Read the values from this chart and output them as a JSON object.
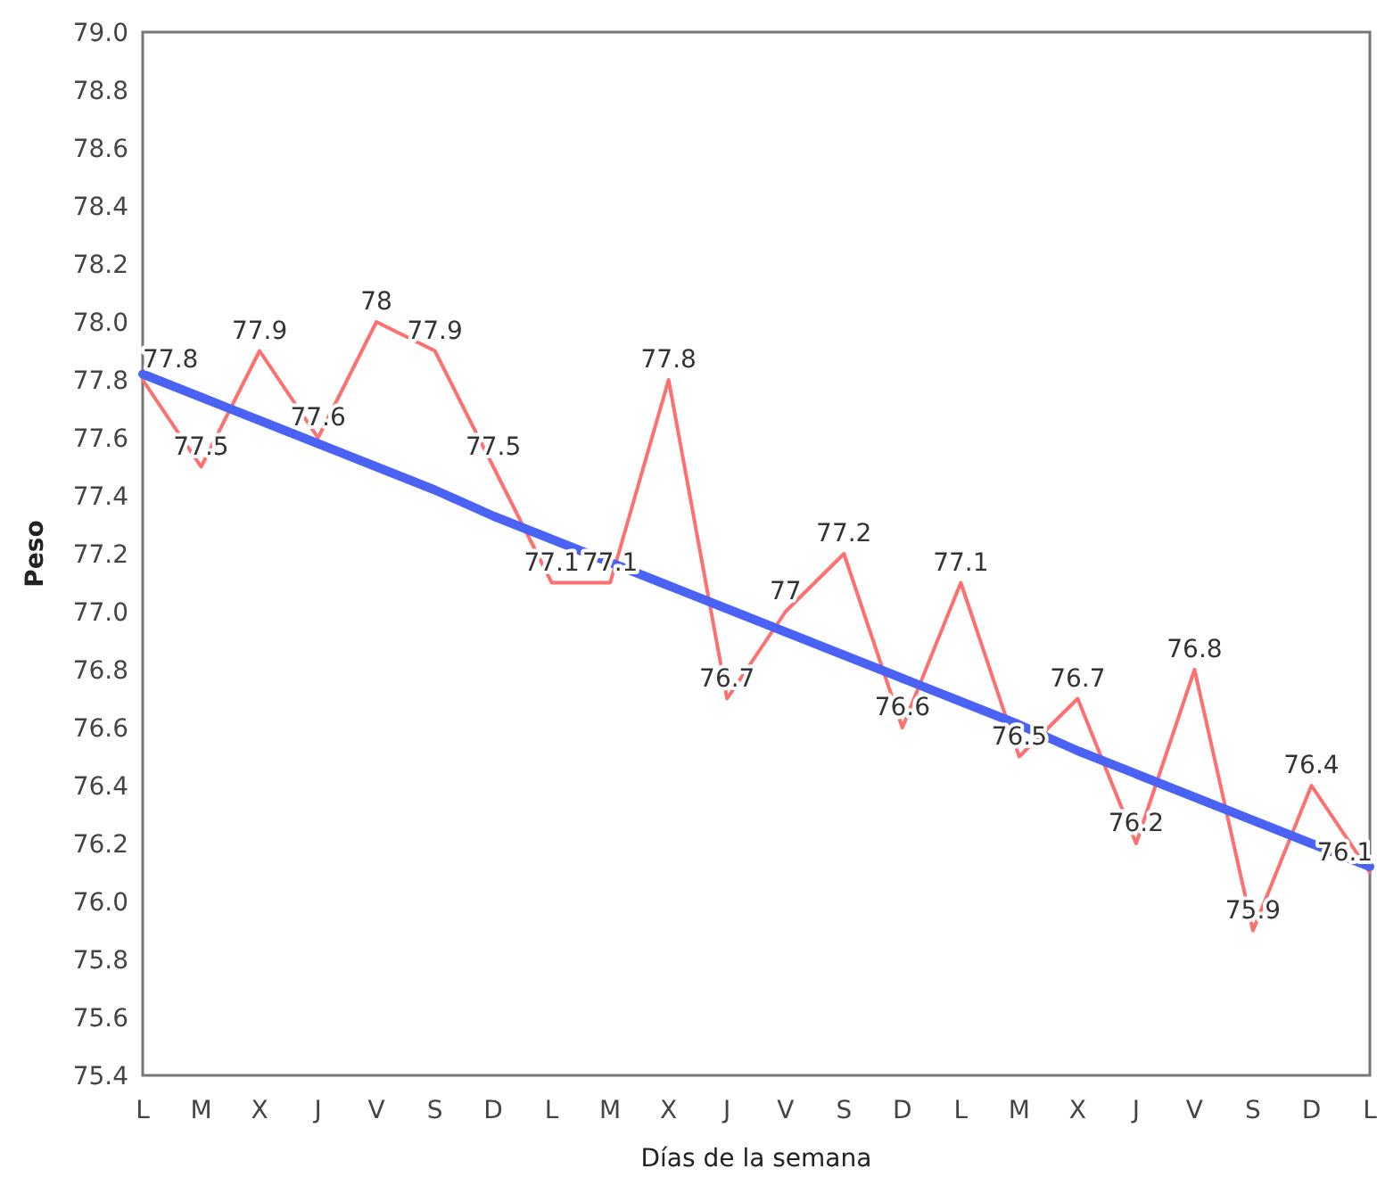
{
  "chart_data": {
    "type": "line",
    "xlabel": "Días de la semana",
    "ylabel": "Peso",
    "categories": [
      "L",
      "M",
      "X",
      "J",
      "V",
      "S",
      "D",
      "L",
      "M",
      "X",
      "J",
      "V",
      "S",
      "D",
      "L",
      "M",
      "X",
      "J",
      "V",
      "S",
      "D",
      "L"
    ],
    "series": [
      {
        "color": "#ff6f6f",
        "values": [
          77.8,
          77.5,
          77.9,
          77.6,
          78,
          77.9,
          77.5,
          77.1,
          77.1,
          77.8,
          76.7,
          77,
          77.2,
          76.6,
          77.1,
          76.5,
          76.7,
          76.2,
          76.8,
          75.9,
          76.4,
          76.1
        ],
        "value_labels": [
          "77.8",
          "77.5",
          "77.9",
          "77.6",
          "78",
          "77.9",
          "77.5",
          "77.1",
          "77.1",
          "77.8",
          "76.7",
          "77",
          "77.2",
          "76.6",
          "77.1",
          "76.5",
          "76.7",
          "76.2",
          "76.8",
          "75.9",
          "76.4",
          "76.1"
        ]
      },
      {
        "type": "line",
        "color": "#4a63f5",
        "values": [
          77.82,
          77.74,
          77.66,
          77.58,
          77.5,
          77.42,
          77.33,
          77.25,
          77.17,
          77.09,
          77.01,
          76.93,
          76.85,
          76.77,
          76.69,
          76.61,
          76.52,
          76.44,
          76.36,
          76.28,
          76.2,
          76.12
        ]
      }
    ],
    "ylim": [
      75.4,
      79
    ],
    "yticks": [
      75.4,
      75.6,
      75.8,
      {
        "value": 76,
        "label": "76.0"
      },
      76.2,
      76.4,
      76.6,
      76.8,
      {
        "value": 77,
        "label": "77.0"
      },
      77.2,
      77.4,
      77.6,
      77.8,
      {
        "value": 78,
        "label": "78.0"
      },
      78.2,
      78.4,
      78.6,
      78.8,
      {
        "value": 79,
        "label": "79.0"
      }
    ],
    "grid": false,
    "marker": "none",
    "line_style": "solid"
  }
}
